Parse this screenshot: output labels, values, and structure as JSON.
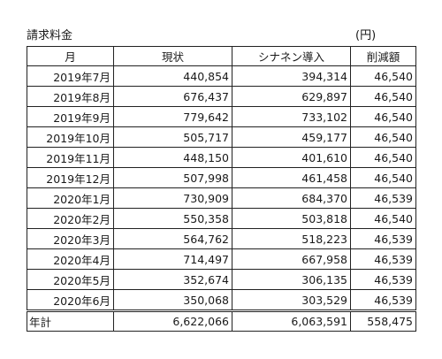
{
  "sheet": {
    "title": "請求料金",
    "unit": "(円)"
  },
  "table": {
    "headers": [
      "月",
      "現状",
      "シナネン導入",
      "削減額"
    ],
    "rows": [
      {
        "month": "2019年7月",
        "current": "440,854",
        "new": "394,314",
        "reduction": "46,540"
      },
      {
        "month": "2019年8月",
        "current": "676,437",
        "new": "629,897",
        "reduction": "46,540"
      },
      {
        "month": "2019年9月",
        "current": "779,642",
        "new": "733,102",
        "reduction": "46,540"
      },
      {
        "month": "2019年10月",
        "current": "505,717",
        "new": "459,177",
        "reduction": "46,540"
      },
      {
        "month": "2019年11月",
        "current": "448,150",
        "new": "401,610",
        "reduction": "46,540"
      },
      {
        "month": "2019年12月",
        "current": "507,998",
        "new": "461,458",
        "reduction": "46,540"
      },
      {
        "month": "2020年1月",
        "current": "730,909",
        "new": "684,370",
        "reduction": "46,539"
      },
      {
        "month": "2020年2月",
        "current": "550,358",
        "new": "503,818",
        "reduction": "46,540"
      },
      {
        "month": "2020年3月",
        "current": "564,762",
        "new": "518,223",
        "reduction": "46,539"
      },
      {
        "month": "2020年4月",
        "current": "714,497",
        "new": "667,958",
        "reduction": "46,539"
      },
      {
        "month": "2020年5月",
        "current": "352,674",
        "new": "306,135",
        "reduction": "46,539"
      },
      {
        "month": "2020年6月",
        "current": "350,068",
        "new": "303,529",
        "reduction": "46,539"
      }
    ],
    "total": {
      "label": "年計",
      "current": "6,622,066",
      "new": "6,063,591",
      "reduction": "558,475"
    }
  }
}
